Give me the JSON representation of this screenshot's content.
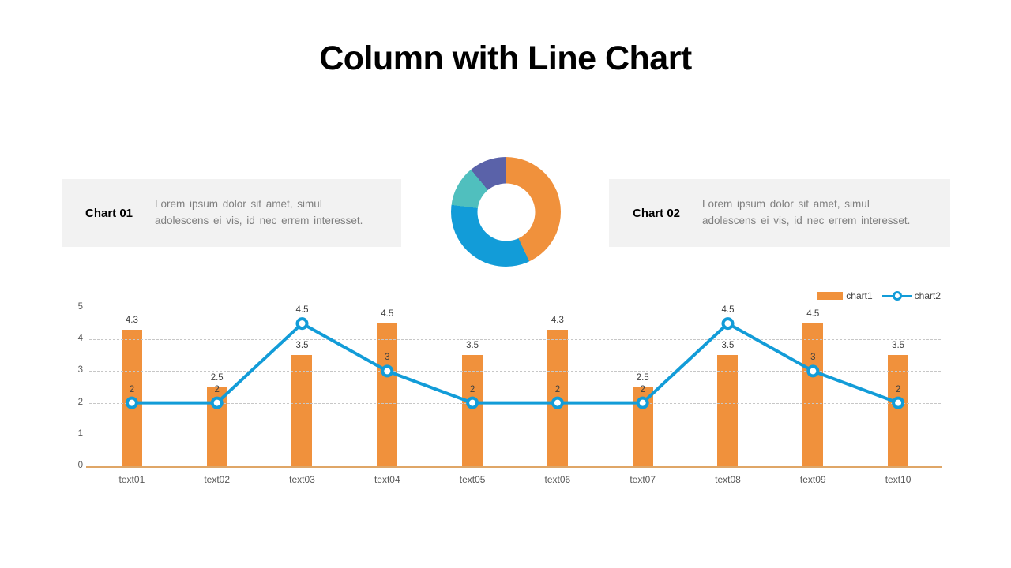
{
  "slide": {
    "title": "Column with Line Chart"
  },
  "info_boxes": [
    {
      "label": "Chart 01",
      "text_lines": [
        "Lorem ipsum dolor sit amet, simul",
        "adolescens ei vis, id nec errem interesset."
      ]
    },
    {
      "label": "Chart 02",
      "text_lines": [
        "Lorem ipsum dolor sit amet, simul",
        "adolescens ei vis, id nec errem interesset."
      ]
    }
  ],
  "colors": {
    "orange": "#F0913C",
    "blue": "#129CD8",
    "teal": "#50BFBE",
    "purple": "#5A62A9",
    "axis_baseline": "#DFA667",
    "gridline": "#C7C7C7",
    "tick_text": "#595959",
    "data_label_text": "#404040"
  },
  "chart_data": [
    {
      "type": "pie",
      "subtype": "donut",
      "start_angle_deg": 0,
      "hole_ratio": 0.53,
      "segments": [
        {
          "label": "orange-segment",
          "value": 43,
          "color": "#F0913C"
        },
        {
          "label": "blue-segment",
          "value": 34,
          "color": "#129CD8"
        },
        {
          "label": "teal-segment",
          "value": 12,
          "color": "#50BFBE"
        },
        {
          "label": "purple-segment",
          "value": 11,
          "color": "#5A62A9"
        }
      ]
    },
    {
      "type": "bar",
      "subtype": "column-with-line",
      "categories": [
        "text01",
        "text02",
        "text03",
        "text04",
        "text05",
        "text06",
        "text07",
        "text08",
        "text09",
        "text10"
      ],
      "series": [
        {
          "name": "chart1",
          "kind": "bar",
          "color": "#F0913C",
          "values": [
            4.3,
            2.5,
            3.5,
            4.5,
            3.5,
            4.3,
            2.5,
            3.5,
            4.5,
            3.5
          ]
        },
        {
          "name": "chart2",
          "kind": "line",
          "color": "#129CD8",
          "values": [
            2,
            2,
            4.5,
            3,
            2,
            2,
            2,
            4.5,
            3,
            2
          ]
        }
      ],
      "ylim": [
        0,
        5
      ],
      "yticks": [
        0,
        1,
        2,
        3,
        4,
        5
      ],
      "grid": "dashed-horizontal",
      "legend_position": "top-right",
      "data_labels": true
    }
  ]
}
